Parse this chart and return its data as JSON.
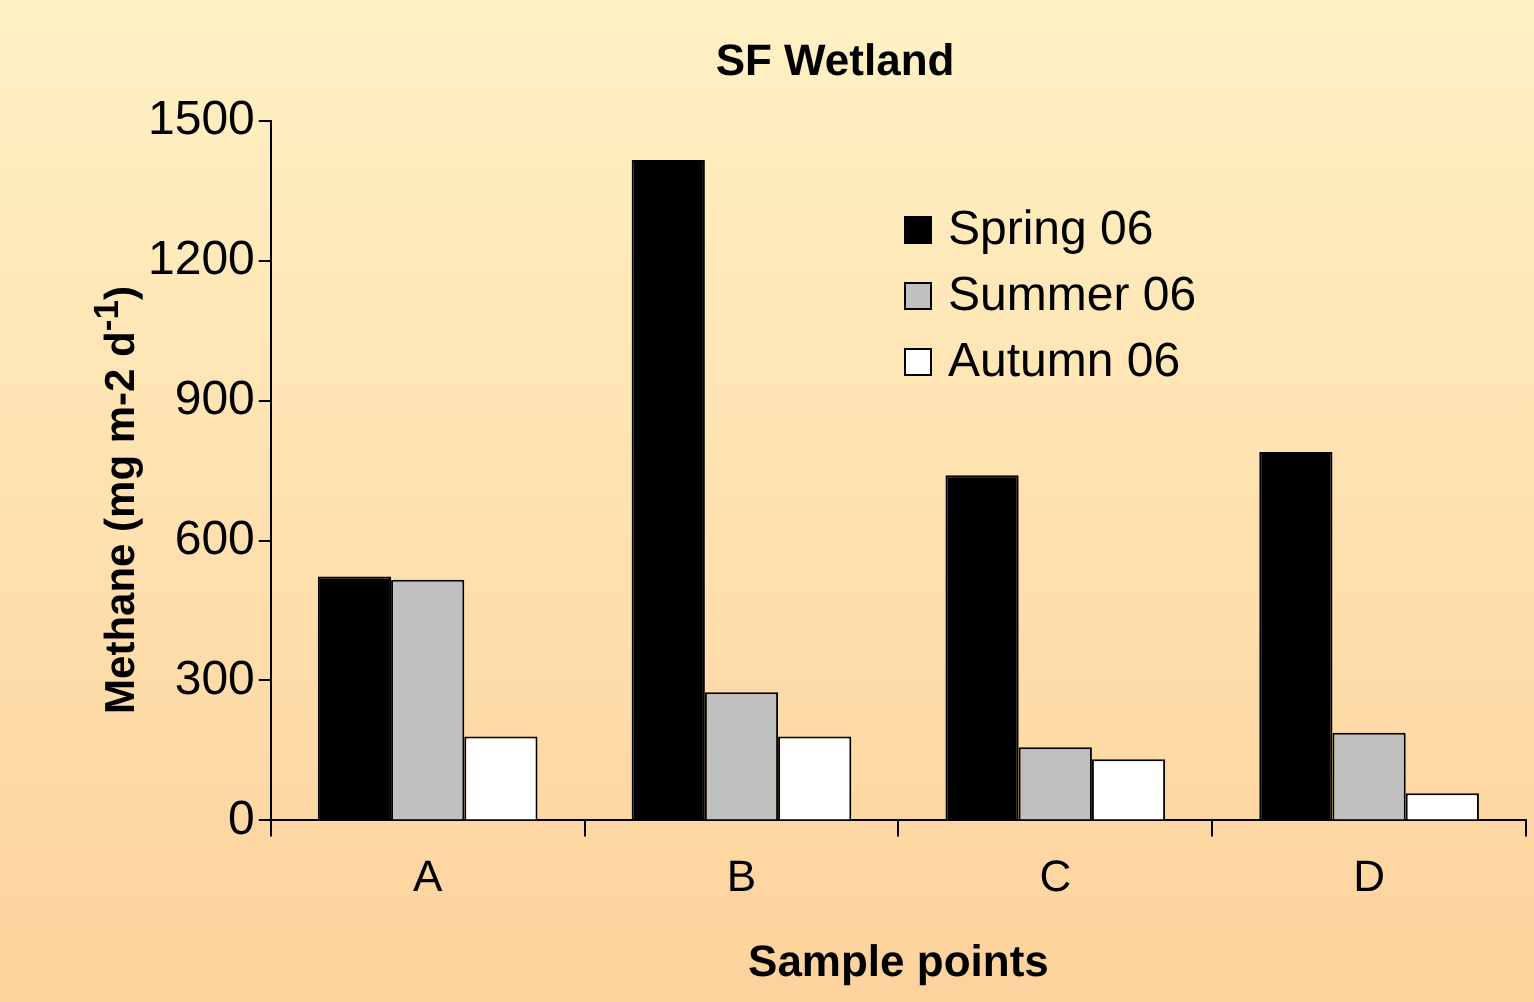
{
  "chart_data": {
    "type": "bar",
    "title": "SF Wetland",
    "xlabel": "Sample points",
    "ylabel": "Methane  (mg m-2 d$^{-1}$)",
    "categories": [
      "A",
      "B",
      "C",
      "D"
    ],
    "series": [
      {
        "name": "Spring 06",
        "color": "#000000",
        "values": [
          523,
          1416,
          740,
          790
        ]
      },
      {
        "name": "Summer 06",
        "color": "#c0c0c0",
        "values": [
          516,
          275,
          157,
          188
        ]
      },
      {
        "name": "Autumn 06",
        "color": "#ffffff",
        "values": [
          180,
          180,
          131,
          58
        ]
      }
    ],
    "ylim": [
      0,
      1500
    ],
    "yticks": [
      0,
      300,
      600,
      900,
      1200,
      1500
    ],
    "grid": false,
    "legend": "top right"
  }
}
